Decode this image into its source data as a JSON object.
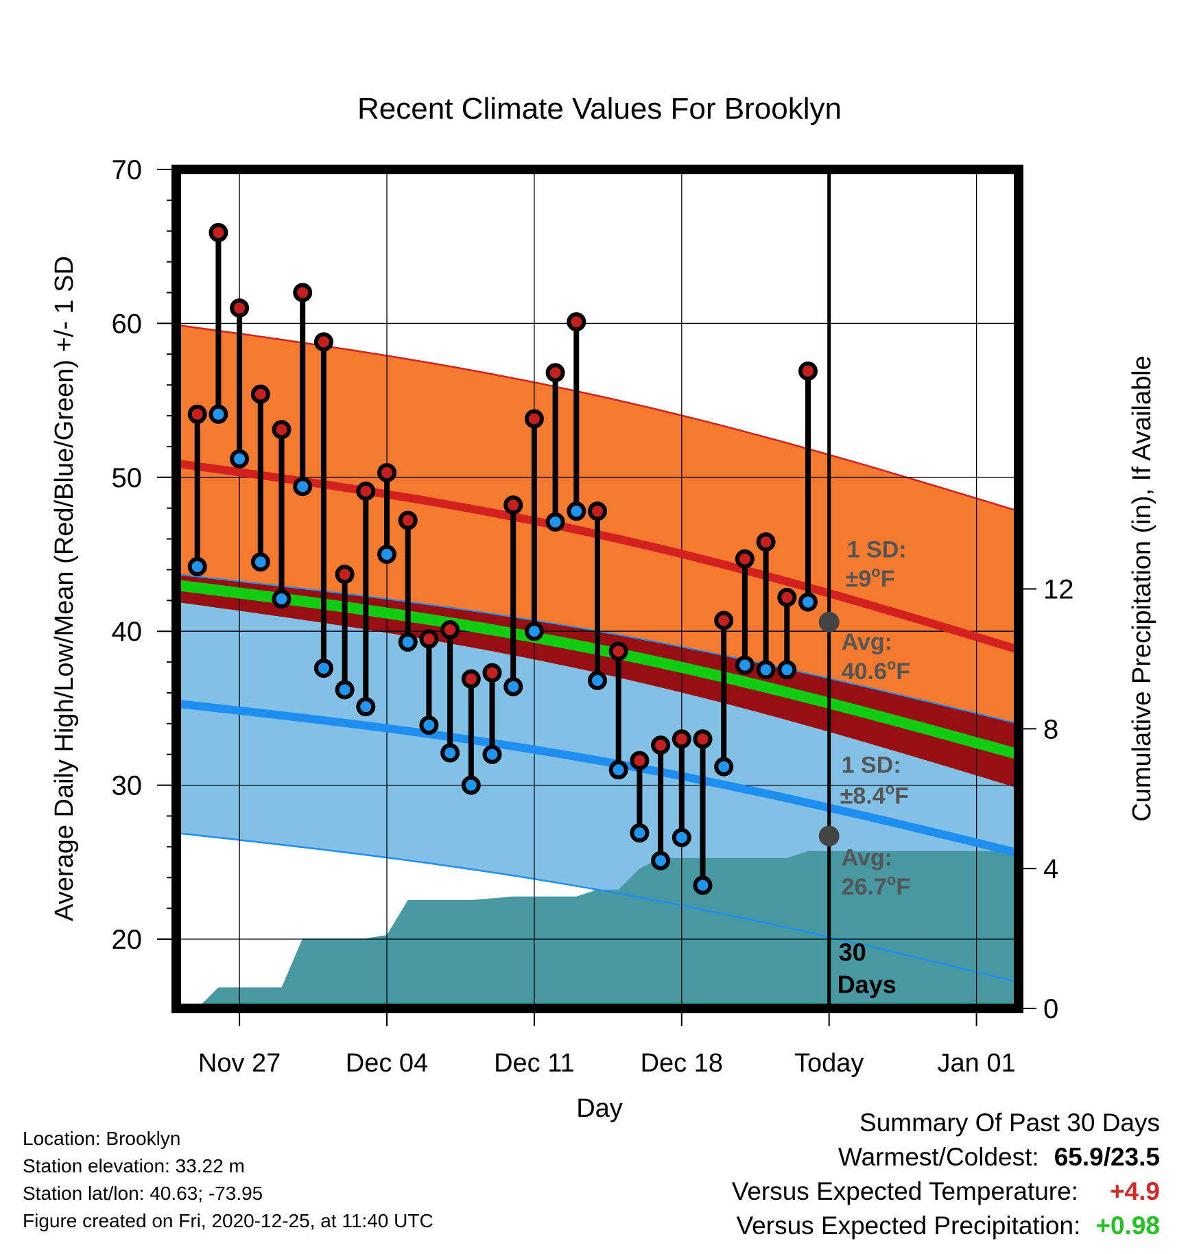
{
  "chart_data": {
    "type": "line",
    "title": "Recent Climate Values For Brooklyn",
    "xlabel": "Day",
    "ylabel": "Average Daily High/Low/Mean (Red/Blue/Green) +/- 1 SD",
    "y2label": "Cumulative Precipitation (in), If Available",
    "ylim": [
      15.5,
      70
    ],
    "y2lim": [
      0,
      24
    ],
    "yticks": [
      "20",
      "30",
      "40",
      "50",
      "60",
      "70"
    ],
    "y2ticks": [
      "0",
      "4",
      "8",
      "12"
    ],
    "xticks": [
      "Nov 27",
      "Dec 04",
      "Dec 11",
      "Dec 18",
      "Today",
      "Jan 01"
    ],
    "x_start": "2020-11-24",
    "x_end": "2021-01-03",
    "today": "2020-12-25",
    "grid": true,
    "highs": [
      54.1,
      65.9,
      61.0,
      55.4,
      53.1,
      62.0,
      58.8,
      43.7,
      49.1,
      50.3,
      47.2,
      39.5,
      40.1,
      36.9,
      37.3,
      48.2,
      53.8,
      56.8,
      60.1,
      47.8,
      38.7,
      31.6,
      32.6,
      33.0,
      33.0,
      40.7,
      44.7,
      45.8,
      42.2,
      56.9
    ],
    "lows": [
      44.2,
      54.1,
      51.2,
      44.5,
      42.1,
      49.4,
      37.6,
      36.2,
      35.1,
      45.0,
      39.3,
      33.9,
      32.1,
      30.0,
      32.0,
      36.4,
      40.0,
      47.1,
      47.8,
      36.8,
      31.0,
      26.9,
      25.1,
      26.6,
      23.5,
      31.2,
      37.8,
      37.5,
      37.5,
      41.9
    ],
    "normal_high": {
      "start": 50.9,
      "end": 38.8,
      "today": 40.6
    },
    "normal_high_sd": 9.0,
    "normal_low": {
      "start": 35.3,
      "end": 25.6,
      "today": 26.7
    },
    "normal_low_sd": 8.4,
    "normal_mean": {
      "start": 43.0,
      "end": 32.0
    },
    "cumulative_precip": [
      0,
      0.6,
      0.6,
      0.6,
      0.6,
      2.0,
      2.0,
      2.0,
      2.0,
      2.1,
      3.1,
      3.1,
      3.1,
      3.1,
      3.15,
      3.2,
      3.2,
      3.2,
      3.2,
      3.4,
      3.4,
      4.0,
      4.3,
      4.3,
      4.3,
      4.3,
      4.3,
      4.3,
      4.3,
      4.5,
      4.5
    ],
    "annotations": {
      "high_sd_label_1": "1 SD:",
      "high_sd_label_2": "±9",
      "high_avg_label_1": "Avg:",
      "high_avg_label_2": "40.6",
      "low_sd_label_1": "1 SD:",
      "low_sd_label_2": "±8.4",
      "low_avg_label_1": "Avg:",
      "low_avg_label_2": "26.7",
      "deg_unit": "o",
      "f_unit": "F",
      "days_label_1": "30",
      "days_label_2": "Days"
    },
    "colors": {
      "high_band": "#f47a2f",
      "high_line": "#d2211f",
      "low_band": "#83c0e6",
      "low_line": "#1e8ff0",
      "mean_band": "#970f12",
      "mean_line": "#12cc12",
      "precip": "#4798a1",
      "high_marker": "#c4201f",
      "low_marker": "#2194ee",
      "annotation": "#555555",
      "today_dot": "#444444"
    }
  },
  "footer": {
    "location": "Location: Brooklyn",
    "elevation": "Station elevation: 33.22 m",
    "latlon": "Station lat/lon: 40.63; -73.95",
    "created": "Figure created on Fri, 2020-12-25, at 11:40 UTC"
  },
  "summary": {
    "title": "Summary Of Past 30 Days",
    "warmest_label": "Warmest/Coldest:",
    "warmest_value": "65.9/23.5",
    "temp_label": "Versus Expected Temperature:",
    "temp_value": "+4.9",
    "temp_color": "#d32a2a",
    "precip_label": "Versus Expected Precipitation:",
    "precip_value": "+0.98",
    "precip_color": "#22c422"
  }
}
